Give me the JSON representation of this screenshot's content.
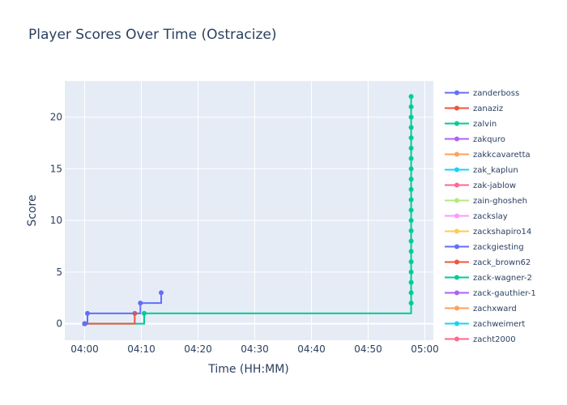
{
  "chart_data": {
    "type": "line",
    "title": "Player Scores Over Time (Ostracize)",
    "xlabel": "Time (HH:MM)",
    "ylabel": "Score",
    "line_shape": "step",
    "x_ticks": [
      "04:00",
      "04:10",
      "04:20",
      "04:30",
      "04:40",
      "04:50",
      "05:00"
    ],
    "x_range": [
      "03:56:30",
      "05:01:30"
    ],
    "y_ticks": [
      0,
      5,
      10,
      15,
      20
    ],
    "ylim": [
      -1.6,
      23.5
    ],
    "grid": true,
    "legend_position": "right",
    "series": [
      {
        "name": "zanderboss",
        "color": "#636efa",
        "points": [
          [
            "04:00:00",
            0
          ],
          [
            "04:00:30",
            1
          ],
          [
            "04:09:50",
            2
          ],
          [
            "04:13:30",
            3
          ]
        ]
      },
      {
        "name": "zanaziz",
        "color": "#EF553B",
        "points": [
          [
            "04:00:00",
            0
          ],
          [
            "04:08:50",
            1
          ]
        ]
      },
      {
        "name": "zalvin",
        "color": "#00cc96",
        "points": [
          [
            "04:00:00",
            0
          ],
          [
            "04:10:30",
            1
          ],
          [
            "04:57:35",
            2
          ],
          [
            "04:57:35",
            3
          ],
          [
            "04:57:35",
            4
          ],
          [
            "04:57:35",
            5
          ],
          [
            "04:57:35",
            6
          ],
          [
            "04:57:35",
            7
          ],
          [
            "04:57:35",
            8
          ],
          [
            "04:57:35",
            9
          ],
          [
            "04:57:35",
            10
          ],
          [
            "04:57:35",
            11
          ],
          [
            "04:57:35",
            12
          ],
          [
            "04:57:35",
            13
          ],
          [
            "04:57:35",
            14
          ],
          [
            "04:57:35",
            15
          ],
          [
            "04:57:35",
            16
          ],
          [
            "04:57:35",
            17
          ],
          [
            "04:57:35",
            18
          ],
          [
            "04:57:35",
            19
          ],
          [
            "04:57:35",
            20
          ],
          [
            "04:57:35",
            21
          ],
          [
            "04:57:35",
            22
          ]
        ]
      },
      {
        "name": "zakquro",
        "color": "#ab63fa",
        "points": [
          [
            "04:00:00",
            0
          ]
        ]
      },
      {
        "name": "zakkcavaretta",
        "color": "#FFA15A",
        "points": [
          [
            "04:00:00",
            0
          ]
        ]
      },
      {
        "name": "zak_kaplun",
        "color": "#19d3f3",
        "points": [
          [
            "04:00:00",
            0
          ]
        ]
      },
      {
        "name": "zak-jablow",
        "color": "#FF6692",
        "points": [
          [
            "04:00:00",
            0
          ]
        ]
      },
      {
        "name": "zain-ghosheh",
        "color": "#B6E880",
        "points": [
          [
            "04:00:00",
            0
          ]
        ]
      },
      {
        "name": "zackslay",
        "color": "#FF97FF",
        "points": [
          [
            "04:00:00",
            0
          ]
        ]
      },
      {
        "name": "zackshapiro14",
        "color": "#FECB52",
        "points": [
          [
            "04:00:00",
            0
          ]
        ]
      },
      {
        "name": "zackgiesting",
        "color": "#636efa",
        "points": [
          [
            "04:00:00",
            0
          ]
        ]
      },
      {
        "name": "zack_brown62",
        "color": "#EF553B",
        "points": [
          [
            "04:00:00",
            0
          ]
        ]
      },
      {
        "name": "zack-wagner-2",
        "color": "#00cc96",
        "points": [
          [
            "04:00:00",
            0
          ]
        ]
      },
      {
        "name": "zack-gauthier-1",
        "color": "#ab63fa",
        "points": [
          [
            "04:00:00",
            0
          ]
        ]
      },
      {
        "name": "zachxward",
        "color": "#FFA15A",
        "points": [
          [
            "04:00:00",
            0
          ]
        ]
      },
      {
        "name": "zachweimert",
        "color": "#19d3f3",
        "points": [
          [
            "04:00:00",
            0
          ]
        ]
      },
      {
        "name": "zacht2000",
        "color": "#FF6692",
        "points": [
          [
            "04:00:00",
            0
          ]
        ]
      }
    ]
  }
}
